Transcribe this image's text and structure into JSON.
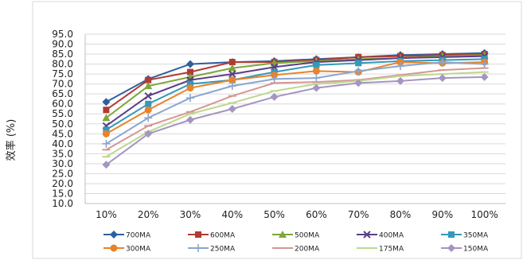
{
  "chart_data": {
    "type": "line",
    "title": "",
    "xlabel": "",
    "ylabel": "效率 (%)",
    "categories": [
      "10%",
      "20%",
      "30%",
      "40%",
      "50%",
      "60%",
      "70%",
      "80%",
      "90%",
      "100%"
    ],
    "ylim": [
      10,
      95
    ],
    "yticks": [
      "10.0",
      "15.0",
      "20.0",
      "25.0",
      "30.0",
      "35.0",
      "40.0",
      "45.0",
      "50.0",
      "55.0",
      "60.0",
      "65.0",
      "70.0",
      "75.0",
      "80.0",
      "85.0",
      "90.0",
      "95.0"
    ],
    "grid": "horizontal",
    "legend_position": "bottom",
    "series": [
      {
        "name": "700MA",
        "color": "#2e5f9c",
        "marker": "diamond",
        "values": [
          61,
          72.5,
          80,
          81,
          81.5,
          82.5,
          83.5,
          84.5,
          85,
          85.5
        ]
      },
      {
        "name": "600MA",
        "color": "#b23a33",
        "marker": "square",
        "values": [
          57,
          72,
          76,
          81,
          81,
          82,
          83.5,
          84,
          84.5,
          85
        ]
      },
      {
        "name": "500MA",
        "color": "#7ea63a",
        "marker": "triangle",
        "values": [
          53,
          69,
          73.5,
          78,
          80.5,
          81.5,
          82.5,
          83,
          84,
          84.5
        ]
      },
      {
        "name": "400MA",
        "color": "#5b3f86",
        "marker": "x",
        "values": [
          49,
          64,
          72,
          75,
          78.5,
          81,
          82,
          83,
          83.5,
          84
        ]
      },
      {
        "name": "350MA",
        "color": "#3399b8",
        "marker": "square",
        "values": [
          47,
          60,
          70,
          72,
          76,
          79.5,
          80.5,
          81.5,
          82,
          82.5
        ]
      },
      {
        "name": "300MA",
        "color": "#e8832b",
        "marker": "circle",
        "values": [
          45,
          57,
          68,
          72,
          74.5,
          76.5,
          76,
          81,
          80.5,
          81
        ]
      },
      {
        "name": "250MA",
        "color": "#8aa6cf",
        "marker": "plus",
        "values": [
          40,
          53,
          63,
          69,
          72.5,
          73,
          76.5,
          79,
          81,
          80
        ]
      },
      {
        "name": "200MA",
        "color": "#d49794",
        "marker": "dash",
        "values": [
          37,
          49,
          56,
          64,
          70.5,
          71,
          72,
          74.5,
          77,
          78
        ]
      },
      {
        "name": "175MA",
        "color": "#bcd88e",
        "marker": "dash",
        "values": [
          33.5,
          46,
          55,
          60.5,
          66.5,
          70,
          71.5,
          74,
          75,
          76
        ]
      },
      {
        "name": "150MA",
        "color": "#a595c2",
        "marker": "diamond",
        "values": [
          29.5,
          45,
          52,
          57.5,
          63.5,
          68,
          70.5,
          71.5,
          73,
          73.5
        ]
      }
    ]
  }
}
